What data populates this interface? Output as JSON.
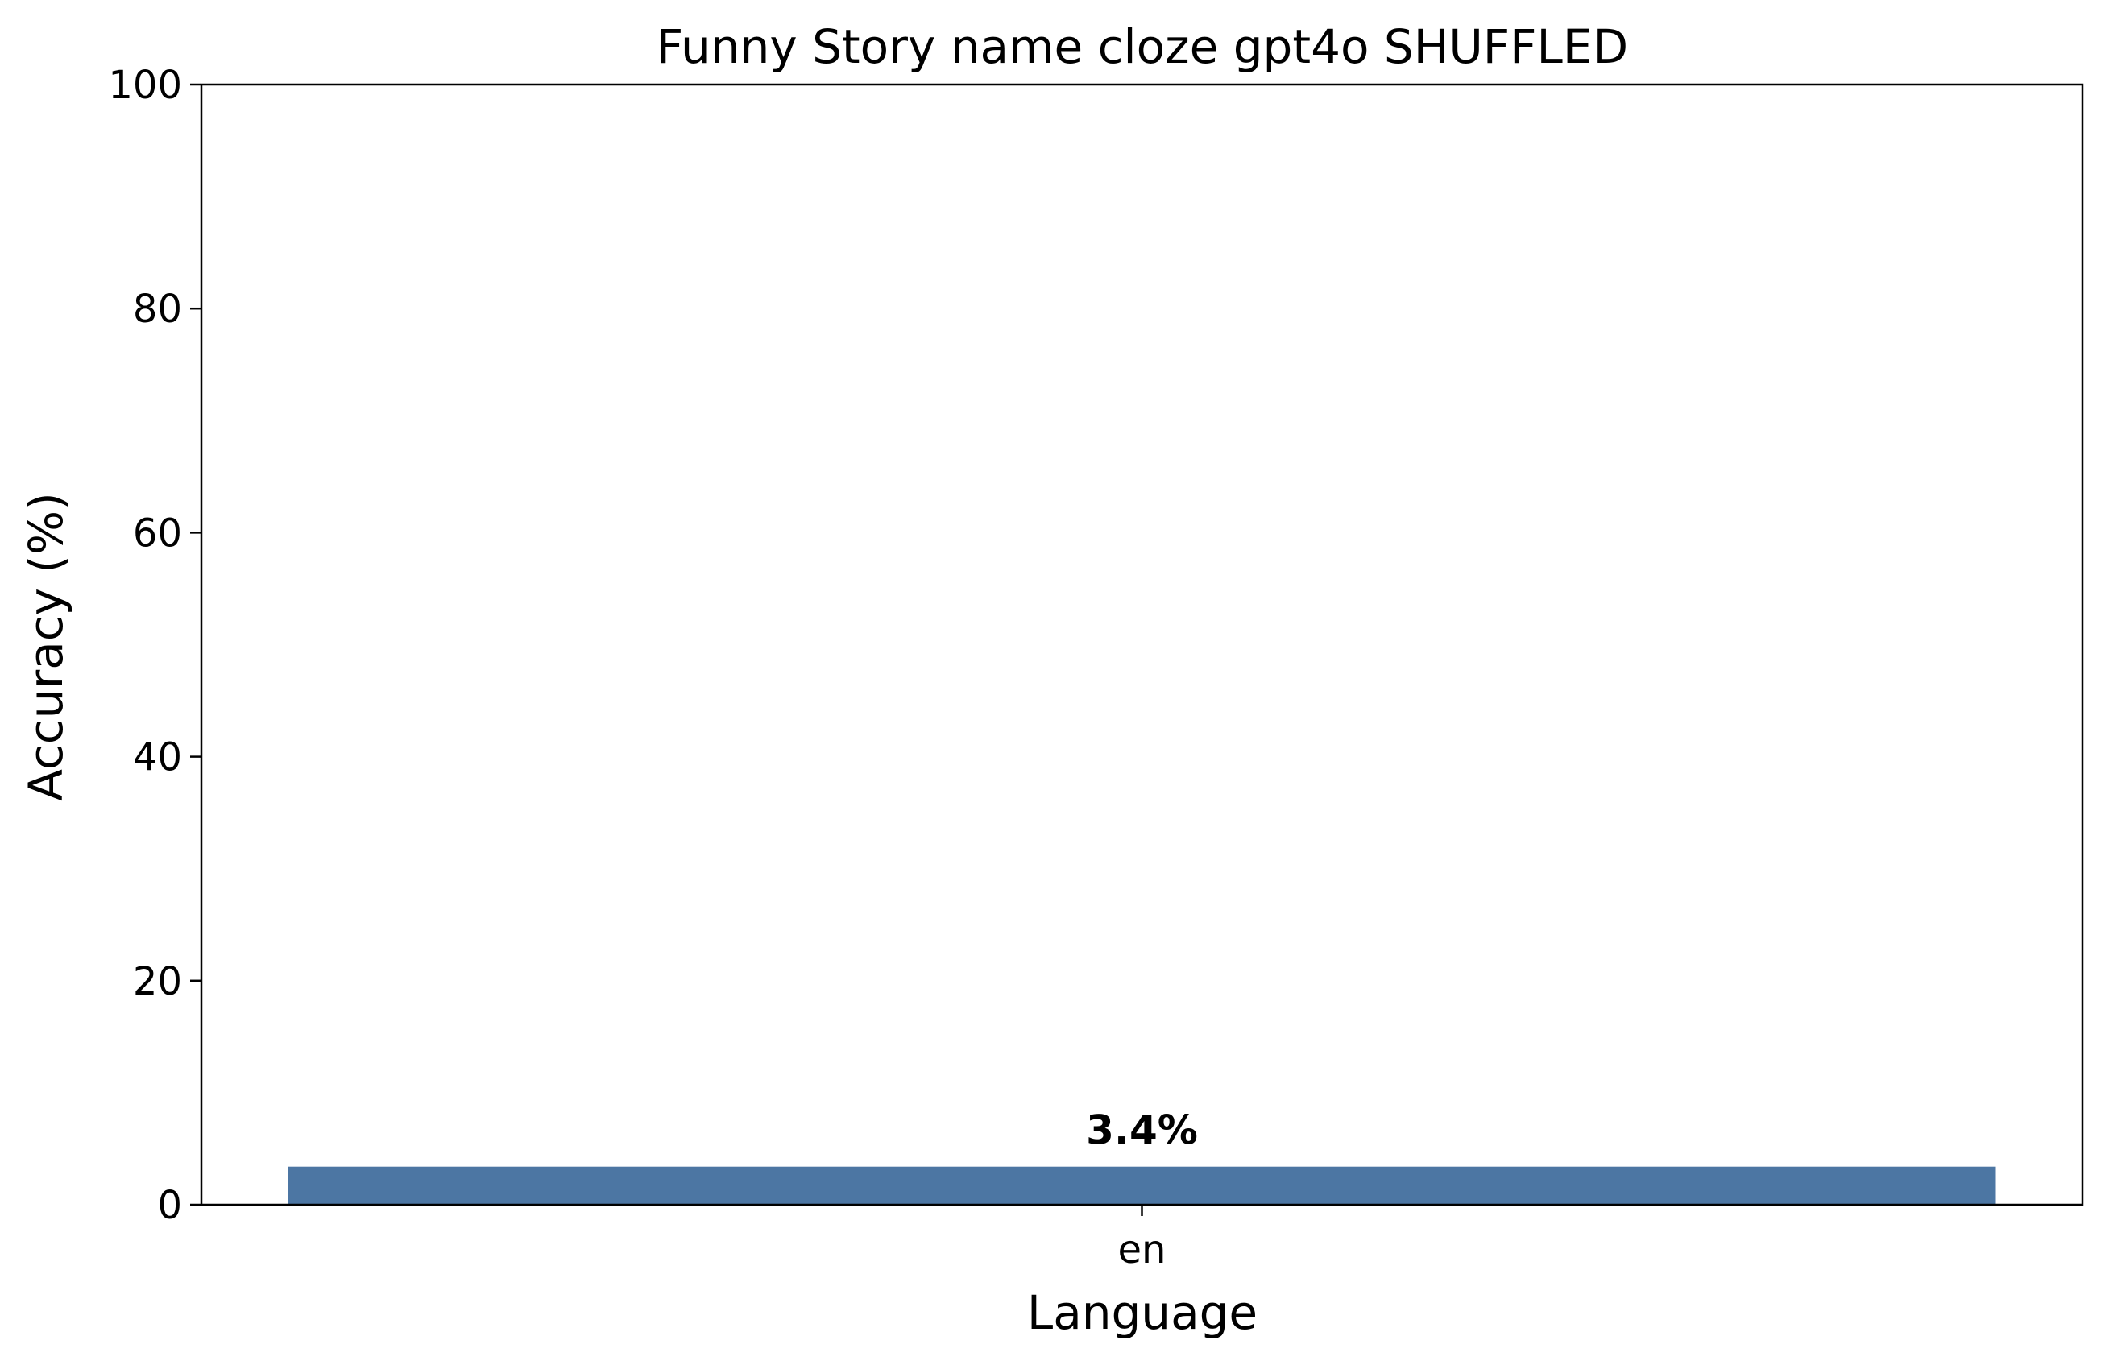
{
  "chart_data": {
    "type": "bar",
    "title": "Funny Story name cloze gpt4o SHUFFLED",
    "xlabel": "Language",
    "ylabel": "Accuracy (%)",
    "categories": [
      "en"
    ],
    "values": [
      3.4
    ],
    "data_labels": [
      "3.4%"
    ],
    "ylim": [
      0,
      100
    ],
    "yticks": [
      0,
      20,
      40,
      60,
      80,
      100
    ],
    "ytick_labels": [
      "0",
      "20",
      "40",
      "60",
      "80",
      "100"
    ],
    "grid": false,
    "legend": "none",
    "bar_color": "#4c76a3"
  }
}
